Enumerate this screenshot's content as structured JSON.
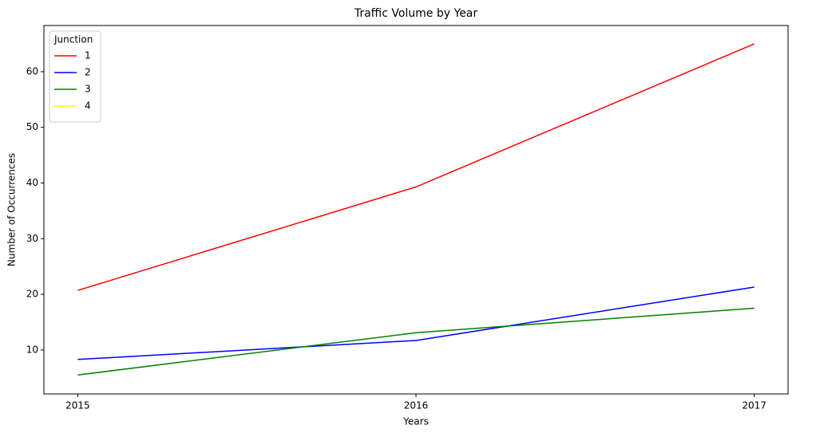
{
  "chart_data": {
    "type": "line",
    "title": "Traffic Volume by Year",
    "x_label": "Years",
    "y_label": "Number of Occurrences",
    "x": [
      2015,
      2016,
      2017
    ],
    "series": [
      {
        "name": "1",
        "color": "#ff0000",
        "values": [
          20.7,
          39.3,
          65.0
        ]
      },
      {
        "name": "2",
        "color": "#0000ff",
        "values": [
          8.3,
          11.7,
          21.3
        ]
      },
      {
        "name": "3",
        "color": "#008000",
        "values": [
          5.5,
          13.1,
          17.5
        ]
      },
      {
        "name": "4",
        "color": "#ffff00",
        "values": [
          null,
          null,
          null
        ]
      }
    ],
    "legend_title": "Junction",
    "legend_position": "upper left",
    "xlim": [
      2014.9,
      2017.1
    ],
    "xticks": [
      2015,
      2016,
      2017
    ],
    "ylim": [
      2.1,
      68.3
    ],
    "yticks": [
      10,
      20,
      30,
      40,
      50,
      60
    ]
  }
}
